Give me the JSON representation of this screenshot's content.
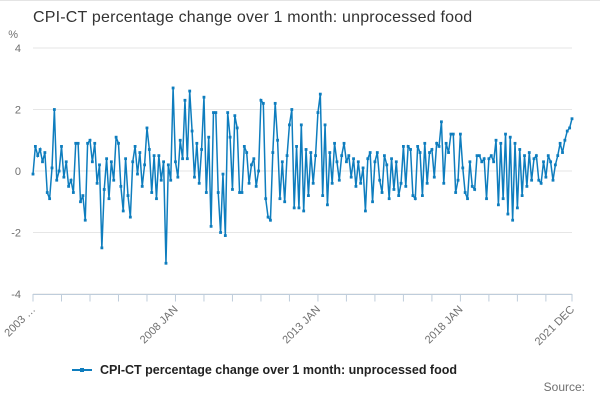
{
  "header": {
    "title": "CPI-CT percentage change over 1 month: unprocessed food"
  },
  "legend": {
    "label": "CPI-CT percentage change over 1 month: unprocessed food",
    "marker_color": "#0e7dbe"
  },
  "source": {
    "label": "Source:"
  },
  "colors": {
    "line": "#0e7dbe",
    "gridline": "#e6e6e6",
    "axis": "#bfcddb",
    "tick_label": "#707070",
    "title": "#333333"
  },
  "chart_data": {
    "type": "line",
    "title": "CPI-CT percentage change over 1 month: unprocessed food",
    "x_start": "2003 JAN",
    "x_end": "2021 DEC",
    "x_tick_labels": [
      {
        "label": "2003 …",
        "month": 0
      },
      {
        "label": "2008 JAN",
        "month": 60
      },
      {
        "label": "2013 JAN",
        "month": 120
      },
      {
        "label": "2018 JAN",
        "month": 180
      },
      {
        "label": "2021 DEC",
        "month": 227
      }
    ],
    "y_axis": {
      "unit": "%",
      "ticks": [
        4,
        2,
        0,
        -2,
        -4
      ],
      "min": -4,
      "max": 4
    },
    "grid": true,
    "legend_position": "bottom",
    "series": [
      {
        "name": "CPI-CT percentage change over 1 month: unprocessed food",
        "color": "#0e7dbe",
        "values": [
          -0.1,
          0.8,
          0.5,
          0.7,
          0.3,
          0.6,
          -0.7,
          -0.9,
          0.1,
          2.0,
          -0.3,
          0.0,
          0.8,
          -0.2,
          0.3,
          -0.5,
          -0.3,
          -0.7,
          0.9,
          0.9,
          -1.0,
          -0.8,
          -1.6,
          0.9,
          1.0,
          0.3,
          0.9,
          -0.4,
          0.2,
          -2.5,
          -0.6,
          0.4,
          -0.9,
          0.3,
          -0.3,
          1.1,
          0.9,
          -0.5,
          -1.3,
          0.4,
          -0.8,
          -1.5,
          0.3,
          0.8,
          -0.1,
          0.6,
          -0.5,
          0.2,
          1.4,
          0.7,
          -0.7,
          0.5,
          -0.9,
          0.5,
          -0.3,
          0.3,
          -3.0,
          0.2,
          -0.3,
          2.7,
          0.3,
          -0.2,
          1.0,
          0.4,
          2.3,
          0.4,
          2.6,
          1.3,
          -0.2,
          0.9,
          -0.4,
          0.7,
          2.4,
          -0.7,
          1.1,
          -1.8,
          1.9,
          1.9,
          -0.7,
          -2.0,
          -0.1,
          -2.1,
          1.9,
          1.1,
          -0.6,
          1.8,
          1.4,
          -0.7,
          -0.7,
          0.8,
          0.6,
          -0.4,
          0.2,
          0.4,
          -0.5,
          0.0,
          2.3,
          2.2,
          -0.9,
          -1.5,
          -1.6,
          0.6,
          2.2,
          1.0,
          -0.9,
          0.3,
          -1.0,
          0.5,
          1.5,
          2.0,
          -1.2,
          0.8,
          -1.2,
          1.5,
          -1.3,
          0.7,
          -0.8,
          0.6,
          -0.4,
          0.5,
          1.9,
          2.5,
          -0.8,
          1.5,
          -1.1,
          0.6,
          -0.4,
          0.9,
          0.3,
          -0.3,
          0.5,
          0.9,
          0.3,
          0.5,
          -0.2,
          0.4,
          -0.5,
          0.3,
          -0.4,
          0.1,
          -1.3,
          0.4,
          0.6,
          -1.0,
          0.3,
          0.6,
          -0.3,
          -0.7,
          0.5,
          0.2,
          -0.9,
          0.4,
          -0.6,
          0.3,
          -0.8,
          -0.4,
          0.8,
          -0.5,
          0.8,
          0.7,
          -0.8,
          -0.9,
          0.8,
          0.6,
          -0.8,
          0.9,
          -0.4,
          0.6,
          0.7,
          -0.2,
          0.9,
          0.8,
          1.6,
          -0.4,
          0.9,
          0.6,
          1.2,
          1.2,
          -0.7,
          -0.3,
          1.2,
          0.1,
          -0.7,
          -0.9,
          0.3,
          -0.5,
          -0.6,
          0.5,
          0.5,
          0.3,
          0.4,
          -0.9,
          0.4,
          0.5,
          0.3,
          1.0,
          -1.1,
          0.9,
          -0.9,
          1.2,
          -1.4,
          1.1,
          -1.6,
          0.9,
          -1.2,
          0.7,
          -0.8,
          0.5,
          -0.5,
          0.6,
          -0.3,
          0.4,
          0.5,
          -0.3,
          -0.4,
          0.3,
          -0.2,
          0.5,
          0.3,
          -0.3,
          0.2,
          0.5,
          0.9,
          0.6,
          1.0,
          1.3,
          1.4,
          1.7
        ]
      }
    ]
  }
}
